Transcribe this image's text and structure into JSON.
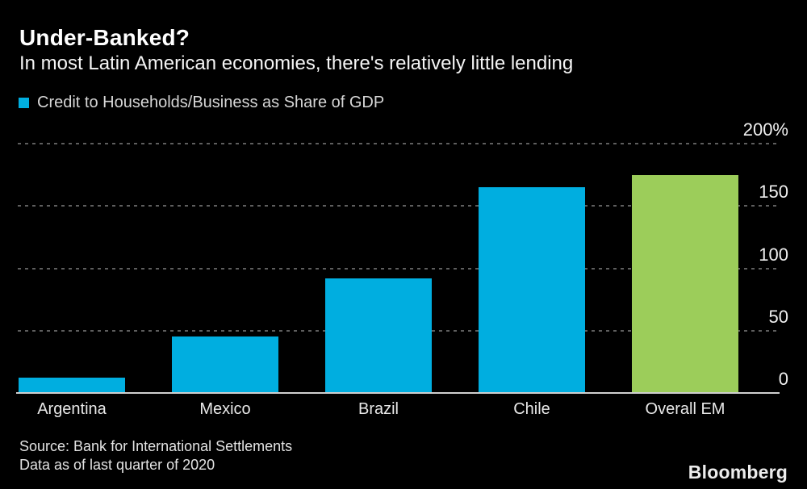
{
  "header": {
    "title": "Under-Banked?",
    "subtitle": "In most Latin American economies, there's relatively little lending"
  },
  "legend": {
    "label": "Credit to Households/Business as Share of GDP",
    "swatch_color": "#00AEE0"
  },
  "chart_data": {
    "type": "bar",
    "title": "Under-Banked?",
    "subtitle": "In most Latin American economies, there's relatively little lending",
    "series_name": "Credit to Households/Business as Share of GDP",
    "categories": [
      "Argentina",
      "Mexico",
      "Brazil",
      "Chile",
      "Overall EM"
    ],
    "values": [
      12,
      45,
      92,
      165,
      175
    ],
    "unit": "%",
    "bar_colors": [
      "#00AEE0",
      "#00AEE0",
      "#00AEE0",
      "#00AEE0",
      "#9CCD5A"
    ],
    "xlabel": "",
    "ylabel": "",
    "ylim": [
      0,
      200
    ],
    "y_ticks": [
      0,
      50,
      100,
      150,
      200
    ],
    "y_tick_labels": [
      "0",
      "50",
      "100",
      "150",
      "200%"
    ],
    "grid": "horizontal-dashed",
    "axis_side": "right",
    "legend_position": "top-left"
  },
  "footer": {
    "source_line1": "Source: Bank for International Settlements",
    "source_line2": "Data as of last quarter of 2020",
    "brand": "Bloomberg"
  },
  "colors": {
    "background": "#000000",
    "bar_cyan": "#00AEE0",
    "bar_green": "#9CCD5A",
    "gridline": "#5e5e5e",
    "axis_line": "#cfcfcf",
    "text": "#ffffff"
  }
}
